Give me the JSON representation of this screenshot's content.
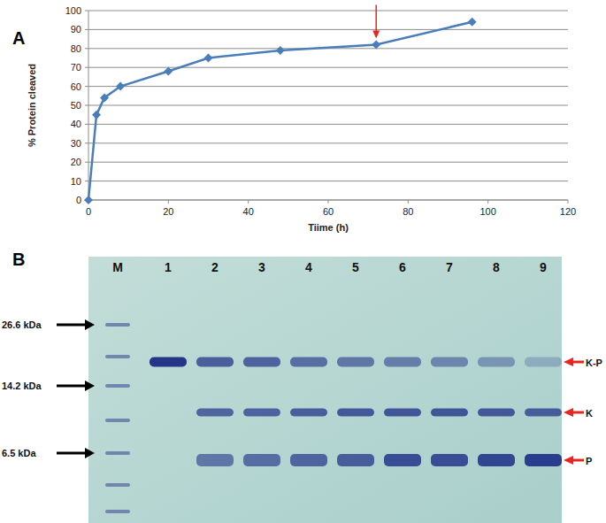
{
  "figure": {
    "panel_labels": [
      "A",
      "B"
    ]
  },
  "chart_data": {
    "type": "line",
    "x_label": "Tiime (h)",
    "y_label": "% Protein cleaved",
    "x": [
      0,
      2,
      4,
      8,
      20,
      30,
      48,
      72,
      96
    ],
    "values": [
      0,
      45,
      54,
      60,
      68,
      75,
      79,
      82,
      94
    ],
    "color": "#4a7ebb",
    "marker": "diamond",
    "line_style": "solid",
    "grid": true,
    "xlim": [
      0,
      120
    ],
    "xticks": [
      0,
      20,
      40,
      60,
      80,
      100,
      120
    ],
    "ylim": [
      0,
      100
    ],
    "yticks": [
      0,
      10,
      20,
      30,
      40,
      50,
      60,
      70,
      80,
      90,
      100
    ],
    "annotations": [
      {
        "type": "arrow",
        "x": 72,
        "y": 82,
        "color": "#e8261f"
      }
    ]
  },
  "gel": {
    "lanes": [
      "M",
      "1",
      "2",
      "3",
      "4",
      "5",
      "6",
      "7",
      "8",
      "9"
    ],
    "markers": [
      {
        "label": "26.6 kDa"
      },
      {
        "label": "14.2 kDa"
      },
      {
        "label": "6.5 kDa"
      }
    ],
    "bands": [
      {
        "label": "K-P",
        "intensity": [
          1.0,
          0.75,
          0.72,
          0.65,
          0.6,
          0.55,
          0.5,
          0.4,
          0.25
        ]
      },
      {
        "label": "K",
        "intensity": [
          0,
          0.7,
          0.72,
          0.75,
          0.78,
          0.8,
          0.8,
          0.78,
          0.75
        ]
      },
      {
        "label": "P",
        "intensity": [
          0,
          0.6,
          0.65,
          0.7,
          0.75,
          0.85,
          0.85,
          0.9,
          0.95
        ]
      }
    ],
    "arrow_color": "#e8261f"
  }
}
